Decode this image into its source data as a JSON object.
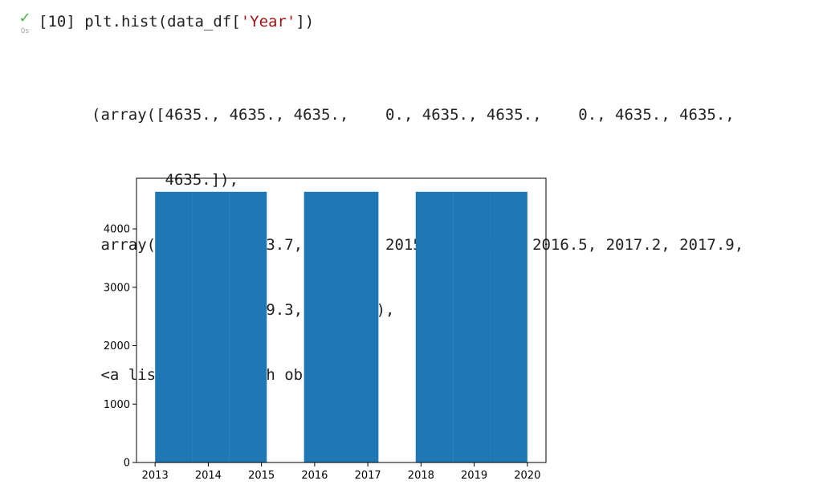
{
  "cell": {
    "status_icon": "check-icon",
    "status_color": "#4caf50",
    "exec_time": "0s",
    "exec_count": "[10]",
    "code_prefix": "plt.hist(data_df[",
    "code_string": "'Year'",
    "code_suffix": "])"
  },
  "output": {
    "lines": [
      "(array([4635., 4635., 4635.,    0., 4635., 4635.,    0., 4635., 4635.,",
      "        4635.]),",
      " array([2013. , 2013.7, 2014.4, 2015.1, 2015.8, 2016.5, 2017.2, 2017.9,",
      "        2018.6, 2019.3, 2020. ]),",
      " <a list of 10 Patch objects>)"
    ]
  },
  "chart_data": {
    "type": "bar",
    "bar_color": "#1f77b4",
    "bin_edges": [
      2013.0,
      2013.7,
      2014.4,
      2015.1,
      2015.8,
      2016.5,
      2017.2,
      2017.9,
      2018.6,
      2019.3,
      2020.0
    ],
    "values": [
      4635,
      4635,
      4635,
      0,
      4635,
      4635,
      0,
      4635,
      4635,
      4635
    ],
    "xlim": [
      2012.65,
      2020.35
    ],
    "ylim": [
      0,
      4866.75
    ],
    "xticks": [
      2013,
      2014,
      2015,
      2016,
      2017,
      2018,
      2019,
      2020
    ],
    "yticks": [
      0,
      1000,
      2000,
      3000,
      4000
    ],
    "title": "",
    "xlabel": "",
    "ylabel": "",
    "grid": false
  }
}
